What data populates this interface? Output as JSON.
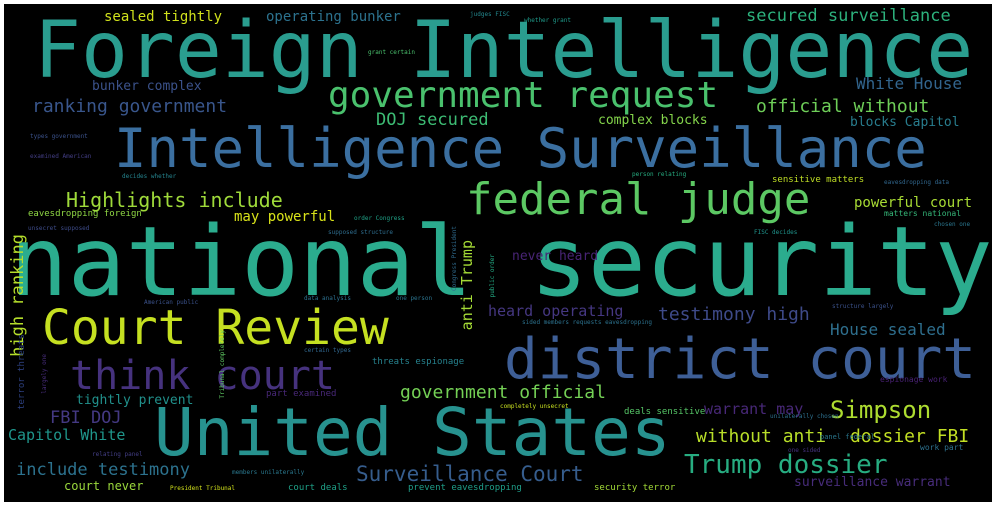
{
  "words": {
    "foreign_intelligence": "Foreign Intelligence",
    "national_security": "national security",
    "united_states": "United States",
    "intelligence_surveillance": "Intelligence Surveillance",
    "district_court": "district court",
    "court_review": "Court Review",
    "federal_judge": "federal judge",
    "government_request": "government request",
    "think_court": "think court",
    "trump_dossier": "Trump dossier",
    "surveillance_court": "Surveillance Court",
    "simpson": "Simpson",
    "highlights_include": "Highlights include",
    "ranking_government": "ranking government",
    "dossier_fbi": "dossier FBI",
    "without_anti": "without anti",
    "government_official": "government official",
    "official_without": "official without",
    "testimony_high": "testimony high",
    "powerful_court": "powerful court",
    "secured_surveillance": "secured surveillance",
    "doj_secured": "DOJ secured",
    "white_house": "White House",
    "house_sealed": "House sealed",
    "include_testimony": "include testimony",
    "capitol_white": "Capitol White",
    "fbi_doj": "FBI DOJ",
    "warrant_may": "warrant may",
    "heard_operating": "heard operating",
    "may_powerful": "may powerful",
    "never_heard": "never heard",
    "complex_blocks": "complex blocks",
    "blocks_capitol": "blocks Capitol",
    "bunker_complex": "bunker complex",
    "sealed_tightly": "sealed tightly",
    "operating_bunker": "operating bunker",
    "tightly_prevent": "tightly prevent",
    "court_never": "court never",
    "surveillance_warrant": "surveillance warrant",
    "high_ranking": "high ranking",
    "anti_trump": "anti Trump",
    "eavesdropping_foreign": "eavesdropping foreign",
    "threats_espionage": "threats espionage",
    "deals_sensitive": "deals sensitive",
    "court_deals": "court deals",
    "prevent_eavesdropping": "prevent eavesdropping",
    "security_terror": "security terror",
    "sensitive_matters": "sensitive matters",
    "matters_national": "matters national",
    "espionage_work": "espionage work",
    "part_examined": "part examined",
    "panel_federal": "panel federal",
    "work_part": "work part",
    "decides_whether": "decides whether",
    "fisc_decides": "FISC decides",
    "judges_fisc": "judges FISC",
    "whether_grant": "whether grant",
    "grant_certain": "grant certain",
    "types_government": "types government",
    "examined_american": "examined American",
    "order_congress": "order Congress",
    "person_relating": "person relating",
    "eavesdropping_data": "eavesdropping data",
    "chosen_one": "chosen one",
    "unsecret_supposed": "unsecret supposed",
    "supposed_structure": "supposed structure",
    "congress_president": "Congress President",
    "public_order": "public order",
    "american_public": "American public",
    "data_analysis": "data analysis",
    "one_person": "one person",
    "structure_largely": "structure largely",
    "sided_members": "sided members requests eavesdropping",
    "terror_threats": "terror threats",
    "largely_one": "largely one",
    "tribunal_completely": "Tribunal completely",
    "certain_types": "certain types",
    "completely_unsecret": "completely unsecret",
    "unilaterally_chosen": "unilaterally chosen",
    "relating_panel": "relating panel",
    "members_unilaterally": "members unilaterally",
    "one_sided": "one sided",
    "president_tribunal": "President Tribunal"
  },
  "colors": {
    "background": "#000000",
    "teal": "#2a9d8f",
    "blue": "#3b6fa0",
    "green": "#5cc863",
    "yellow_green": "#b5de2b",
    "purple": "#482878"
  }
}
